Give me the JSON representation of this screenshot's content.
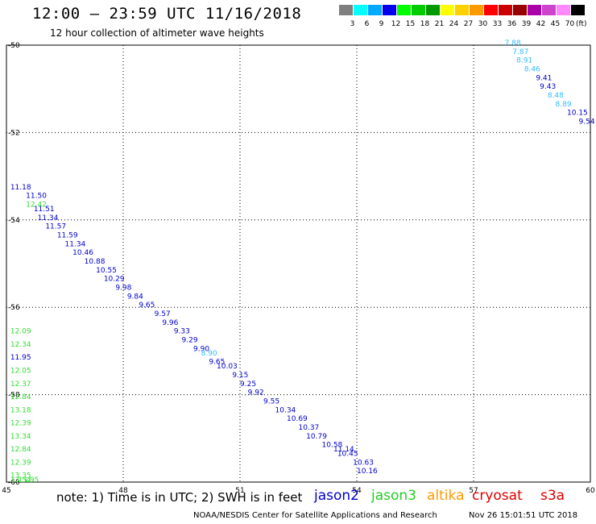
{
  "header": {
    "title": "12:00 – 23:59 UTC 11/16/2018",
    "subtitle": "12 hour collection of altimeter wave heights"
  },
  "legend": {
    "unit": "(ft)",
    "bins": [
      {
        "label": "3",
        "color": "#7f7f7f"
      },
      {
        "label": "6",
        "color": "#00ffff"
      },
      {
        "label": "9",
        "color": "#00aaff"
      },
      {
        "label": "12",
        "color": "#0000ee"
      },
      {
        "label": "15",
        "color": "#00ff00"
      },
      {
        "label": "18",
        "color": "#00cc00"
      },
      {
        "label": "21",
        "color": "#009900"
      },
      {
        "label": "24",
        "color": "#ffff00"
      },
      {
        "label": "27",
        "color": "#ffd000"
      },
      {
        "label": "30",
        "color": "#ff9900"
      },
      {
        "label": "33",
        "color": "#ff0000"
      },
      {
        "label": "36",
        "color": "#cc0000"
      },
      {
        "label": "39",
        "color": "#990000"
      },
      {
        "label": "42",
        "color": "#aa00aa"
      },
      {
        "label": "45",
        "color": "#cc44cc"
      },
      {
        "label": "70",
        "color": "#ff88ff"
      },
      {
        "label": "",
        "color": "#000000"
      }
    ]
  },
  "map": {
    "lon_range": [
      45,
      60
    ],
    "lat_range": [
      -60,
      -50
    ],
    "lon_ticks": [
      "45",
      "48",
      "51",
      "54",
      "57",
      "60"
    ],
    "lat_ticks": [
      "-50",
      "-52",
      "-54",
      "-56",
      "-58",
      "-60"
    ],
    "colors": {
      "jason2": "#0000cc",
      "jason3": "#33dd33",
      "altika": "#ff9900",
      "cryosat": "#dd0000",
      "s3a": "#dd0000",
      "light": "#33bbff",
      "mid": "#1188ee"
    }
  },
  "map_data": {
    "observations": [
      {
        "lon": 57.8,
        "lat": -50.0,
        "text": "7.88",
        "sat": "light"
      },
      {
        "lon": 58.0,
        "lat": -50.2,
        "text": "7.87",
        "sat": "light"
      },
      {
        "lon": 58.1,
        "lat": -50.4,
        "text": "8.91",
        "sat": "light"
      },
      {
        "lon": 58.3,
        "lat": -50.6,
        "text": "8.46",
        "sat": "light"
      },
      {
        "lon": 58.6,
        "lat": -50.8,
        "text": "9.41",
        "sat": "jason2"
      },
      {
        "lon": 58.7,
        "lat": -51.0,
        "text": "9.43",
        "sat": "jason2"
      },
      {
        "lon": 58.9,
        "lat": -51.2,
        "text": "8.48",
        "sat": "light"
      },
      {
        "lon": 59.1,
        "lat": -51.4,
        "text": "8.89",
        "sat": "light"
      },
      {
        "lon": 59.4,
        "lat": -51.6,
        "text": "10.15",
        "sat": "jason2"
      },
      {
        "lon": 59.7,
        "lat": -51.8,
        "text": "9.54",
        "sat": "jason2"
      },
      {
        "lon": 45.1,
        "lat": -53.3,
        "text": "11.18",
        "sat": "jason2"
      },
      {
        "lon": 45.5,
        "lat": -53.5,
        "text": "11.50",
        "sat": "jason2"
      },
      {
        "lon": 45.5,
        "lat": -53.7,
        "text": "12.42",
        "sat": "jason3"
      },
      {
        "lon": 45.7,
        "lat": -53.8,
        "text": "11.51",
        "sat": "jason2"
      },
      {
        "lon": 45.8,
        "lat": -54.0,
        "text": "11.34",
        "sat": "jason2"
      },
      {
        "lon": 46.0,
        "lat": -54.2,
        "text": "11.57",
        "sat": "jason2"
      },
      {
        "lon": 46.3,
        "lat": -54.4,
        "text": "11.59",
        "sat": "jason2"
      },
      {
        "lon": 46.5,
        "lat": -54.6,
        "text": "11.34",
        "sat": "jason2"
      },
      {
        "lon": 46.7,
        "lat": -54.8,
        "text": "10.46",
        "sat": "jason2"
      },
      {
        "lon": 47.0,
        "lat": -55.0,
        "text": "10.88",
        "sat": "jason2"
      },
      {
        "lon": 47.3,
        "lat": -55.2,
        "text": "10.55",
        "sat": "jason2"
      },
      {
        "lon": 47.5,
        "lat": -55.4,
        "text": "10.29",
        "sat": "jason2"
      },
      {
        "lon": 47.8,
        "lat": -55.6,
        "text": "9.98",
        "sat": "jason2"
      },
      {
        "lon": 48.1,
        "lat": -55.8,
        "text": "9.84",
        "sat": "jason2"
      },
      {
        "lon": 48.4,
        "lat": -56.0,
        "text": "9.65",
        "sat": "jason2"
      },
      {
        "lon": 48.8,
        "lat": -56.2,
        "text": "9.57",
        "sat": "jason2"
      },
      {
        "lon": 49.0,
        "lat": -56.4,
        "text": "9.96",
        "sat": "jason2"
      },
      {
        "lon": 49.3,
        "lat": -56.6,
        "text": "9.33",
        "sat": "jason2"
      },
      {
        "lon": 49.5,
        "lat": -56.8,
        "text": "9.29",
        "sat": "jason2"
      },
      {
        "lon": 49.8,
        "lat": -57.0,
        "text": "9.90",
        "sat": "jason2"
      },
      {
        "lon": 50.0,
        "lat": -57.1,
        "text": "8.90",
        "sat": "light"
      },
      {
        "lon": 50.2,
        "lat": -57.3,
        "text": "9.65",
        "sat": "jason2"
      },
      {
        "lon": 50.4,
        "lat": -57.4,
        "text": "10.03",
        "sat": "jason2"
      },
      {
        "lon": 50.8,
        "lat": -57.6,
        "text": "9.15",
        "sat": "jason2"
      },
      {
        "lon": 51.0,
        "lat": -57.8,
        "text": "9.25",
        "sat": "jason2"
      },
      {
        "lon": 51.2,
        "lat": -58.0,
        "text": "9.92",
        "sat": "jason2"
      },
      {
        "lon": 51.6,
        "lat": -58.2,
        "text": "9.55",
        "sat": "jason2"
      },
      {
        "lon": 51.9,
        "lat": -58.4,
        "text": "10.34",
        "sat": "jason2"
      },
      {
        "lon": 52.2,
        "lat": -58.6,
        "text": "10.69",
        "sat": "jason2"
      },
      {
        "lon": 52.5,
        "lat": -58.8,
        "text": "10.37",
        "sat": "jason2"
      },
      {
        "lon": 52.7,
        "lat": -59.0,
        "text": "10.79",
        "sat": "jason2"
      },
      {
        "lon": 53.1,
        "lat": -59.2,
        "text": "10.58",
        "sat": "jason2"
      },
      {
        "lon": 53.4,
        "lat": -59.3,
        "text": "11.14",
        "sat": "jason2"
      },
      {
        "lon": 53.5,
        "lat": -59.4,
        "text": "10.45",
        "sat": "jason2"
      },
      {
        "lon": 53.9,
        "lat": -59.6,
        "text": "10.63",
        "sat": "jason2"
      },
      {
        "lon": 54.0,
        "lat": -59.8,
        "text": "10.16",
        "sat": "jason2"
      },
      {
        "lon": 45.1,
        "lat": -56.6,
        "text": "12.09",
        "sat": "jason3"
      },
      {
        "lon": 45.1,
        "lat": -56.9,
        "text": "12.34",
        "sat": "jason3"
      },
      {
        "lon": 45.1,
        "lat": -57.2,
        "text": "11.95",
        "sat": "jason2"
      },
      {
        "lon": 45.1,
        "lat": -57.5,
        "text": "12.05",
        "sat": "jason3"
      },
      {
        "lon": 45.1,
        "lat": -57.8,
        "text": "12.37",
        "sat": "jason3"
      },
      {
        "lon": 45.1,
        "lat": -58.1,
        "text": "12.84",
        "sat": "jason3"
      },
      {
        "lon": 45.1,
        "lat": -58.4,
        "text": "13.18",
        "sat": "jason3"
      },
      {
        "lon": 45.1,
        "lat": -58.7,
        "text": "12.39",
        "sat": "jason3"
      },
      {
        "lon": 45.1,
        "lat": -59.0,
        "text": "13.34",
        "sat": "jason3"
      },
      {
        "lon": 45.1,
        "lat": -59.3,
        "text": "12.84",
        "sat": "jason3"
      },
      {
        "lon": 45.1,
        "lat": -59.6,
        "text": "12.39",
        "sat": "jason3"
      },
      {
        "lon": 45.1,
        "lat": -59.9,
        "text": "13.35",
        "sat": "jason3"
      },
      {
        "lon": 45.1,
        "lat": -60.0,
        "text": "13.54",
        "sat": "jason3"
      },
      {
        "lon": 45.3,
        "lat": -60.0,
        "text": "13.95",
        "sat": "jason3"
      }
    ],
    "note": "observation coordinates are approximate placements in lon/lat data units"
  },
  "footer": {
    "note": "note:  1) Time is in UTC;  2) SWH is in feet",
    "satellites": [
      {
        "name": "jason2",
        "color": "#0000cc"
      },
      {
        "name": "jason3",
        "color": "#22cc22"
      },
      {
        "name": "altika",
        "color": "#ff9900"
      },
      {
        "name": "cryosat",
        "color": "#dd0000"
      },
      {
        "name": "s3a",
        "color": "#dd0000"
      }
    ],
    "credit": "NOAA/NESDIS Center for Satellite Applications and Research",
    "stamp": "Nov 26 15:01:51 UTC 2018"
  }
}
